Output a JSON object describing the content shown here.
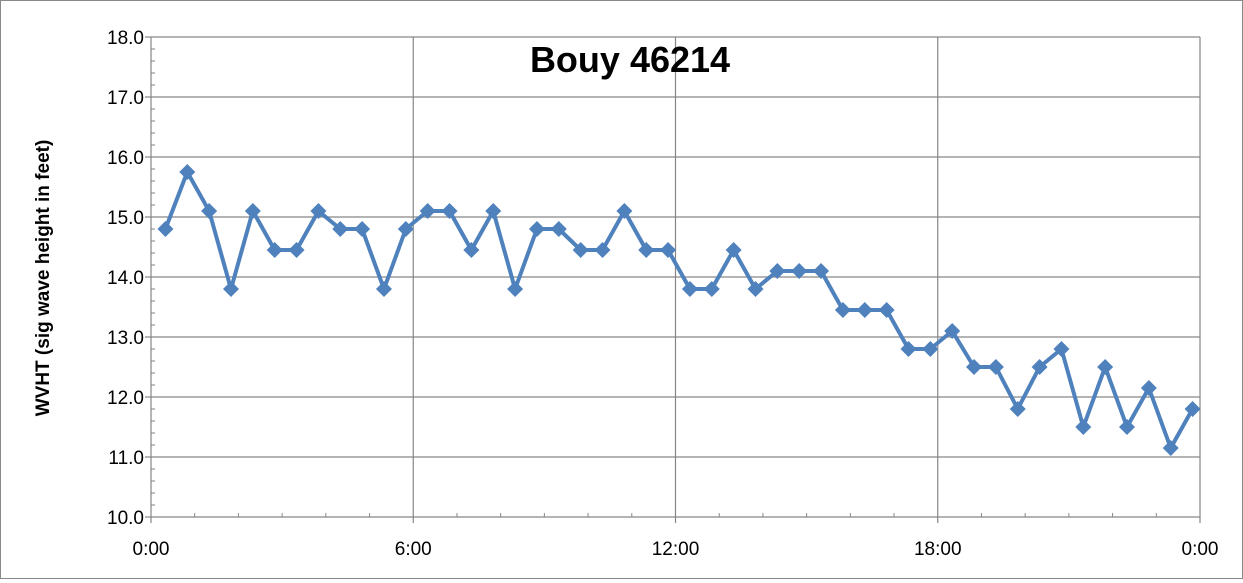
{
  "chart_data": {
    "type": "line",
    "title": "Bouy 46214",
    "xlabel": "",
    "ylabel": "WVHT (sig wave height in feet)",
    "xlim": [
      0,
      24
    ],
    "ylim": [
      10.0,
      18.0
    ],
    "grid": true,
    "legend": "none",
    "x_ticks": [
      "0:00",
      "6:00",
      "12:00",
      "18:00",
      "0:00"
    ],
    "y_ticks": [
      "10.0",
      "11.0",
      "12.0",
      "13.0",
      "14.0",
      "15.0",
      "16.0",
      "17.0",
      "18.0"
    ],
    "colors": {
      "series": "#4f81bd",
      "grid": "#868686",
      "axis": "#868686"
    },
    "series": [
      {
        "x": [
          0.33,
          0.83,
          1.33,
          1.83,
          2.33,
          2.83,
          3.33,
          3.83,
          4.33,
          4.83,
          5.33,
          5.83,
          6.33,
          6.83,
          7.33,
          7.83,
          8.33,
          8.83,
          9.33,
          9.83,
          10.33,
          10.83,
          11.33,
          11.83,
          12.33,
          12.83,
          13.33,
          13.83,
          14.33,
          14.83,
          15.33,
          15.83,
          16.33,
          16.83,
          17.33,
          17.83,
          18.33,
          18.83,
          19.33,
          19.83,
          20.33,
          20.83,
          21.33,
          21.83,
          22.33,
          22.83,
          23.33,
          23.83
        ],
        "values": [
          14.8,
          15.75,
          15.1,
          13.8,
          15.1,
          14.45,
          14.45,
          15.1,
          14.8,
          14.8,
          13.8,
          14.8,
          15.1,
          15.1,
          14.45,
          15.1,
          13.8,
          14.8,
          14.8,
          14.45,
          14.45,
          15.1,
          14.45,
          14.45,
          13.8,
          13.8,
          14.45,
          13.8,
          14.1,
          14.1,
          14.1,
          13.45,
          13.45,
          13.45,
          12.8,
          12.8,
          13.1,
          12.5,
          12.5,
          11.8,
          12.5,
          12.8,
          11.5,
          12.5,
          11.5,
          12.15,
          11.15,
          11.8
        ]
      }
    ]
  }
}
